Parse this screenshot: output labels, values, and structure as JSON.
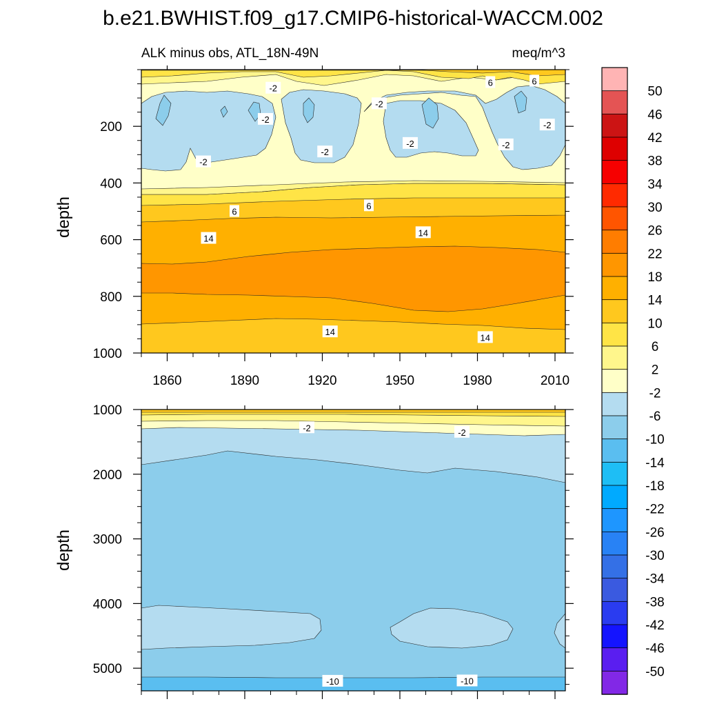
{
  "title": "b.e21.BWHIST.f09_g17.CMIP6-historical-WACCM.002",
  "chart_data": {
    "type": "heatmap",
    "subtitle_left": "ALK minus obs, ATL_18N-49N",
    "subtitle_right": "meq/m^3",
    "x_range": [
      1850,
      2014
    ],
    "x_ticks": [
      1860,
      1890,
      1920,
      1950,
      1980,
      2010
    ],
    "x_tick_labels": [
      "1860",
      "1890",
      "1920",
      "1950",
      "1980",
      "2010"
    ],
    "colorbar": {
      "levels": [
        50,
        46,
        42,
        38,
        34,
        30,
        26,
        22,
        18,
        14,
        10,
        6,
        2,
        -2,
        -6,
        -10,
        -14,
        -18,
        -22,
        -26,
        -30,
        -34,
        -38,
        -42,
        -46,
        -50
      ],
      "labels": [
        "50",
        "46",
        "42",
        "38",
        "34",
        "30",
        "26",
        "22",
        "18",
        "14",
        "10",
        "6",
        "2",
        "-2",
        "-6",
        "-10",
        "-14",
        "-18",
        "-22",
        "-26",
        "-30",
        "-34",
        "-38",
        "-42",
        "-46",
        "-50"
      ],
      "colors": [
        "#ffb4b4",
        "#e45454",
        "#cc1414",
        "#de0000",
        "#f60000",
        "#ff2a00",
        "#ff5500",
        "#ff7d00",
        "#ff9600",
        "#ffb000",
        "#ffc81e",
        "#ffe446",
        "#fff68c",
        "#ffffc8",
        "#b4dcf0",
        "#8ccdeb",
        "#5abef0",
        "#1ebef5",
        "#00aaff",
        "#1e96ff",
        "#2882f5",
        "#3470e6",
        "#3a5ae0",
        "#2a3cf0",
        "#1414ff",
        "#5a1ef0",
        "#8228e6"
      ]
    },
    "panels": [
      {
        "id": "upper",
        "ylabel": "depth",
        "y_range": [
          0,
          1000
        ],
        "y_ticks": [
          200,
          400,
          600,
          800,
          1000
        ],
        "y_tick_labels": [
          "200",
          "400",
          "600",
          "800",
          "1000"
        ],
        "contour_labels": [
          {
            "text": "-2",
            "x": 1901,
            "y": 65
          },
          {
            "text": "-2",
            "x": 1898,
            "y": 175
          },
          {
            "text": "-2",
            "x": 1874,
            "y": 325
          },
          {
            "text": "-2",
            "x": 1921,
            "y": 290
          },
          {
            "text": "-2",
            "x": 1942,
            "y": 120
          },
          {
            "text": "-2",
            "x": 1954,
            "y": 260
          },
          {
            "text": "-2",
            "x": 1991,
            "y": 265
          },
          {
            "text": "-2",
            "x": 2007,
            "y": 195
          },
          {
            "text": "6",
            "x": 1985,
            "y": 45
          },
          {
            "text": "6",
            "x": 2002,
            "y": 40
          },
          {
            "text": "6",
            "x": 1886,
            "y": 500
          },
          {
            "text": "6",
            "x": 1938,
            "y": 480
          },
          {
            "text": "14",
            "x": 1876,
            "y": 595
          },
          {
            "text": "14",
            "x": 1959,
            "y": 575
          },
          {
            "text": "14",
            "x": 1923,
            "y": 925
          },
          {
            "text": "14",
            "x": 1983,
            "y": 945
          }
        ]
      },
      {
        "id": "lower",
        "ylabel": "depth",
        "y_range": [
          1000,
          5350
        ],
        "y_ticks": [
          1000,
          2000,
          3000,
          4000,
          5000
        ],
        "y_tick_labels": [
          "1000",
          "2000",
          "3000",
          "4000",
          "5000"
        ],
        "contour_labels": [
          {
            "text": "-2",
            "x": 1914,
            "y": 1280
          },
          {
            "text": "-2",
            "x": 1974,
            "y": 1350
          },
          {
            "text": "-10",
            "x": 1924,
            "y": 5200
          },
          {
            "text": "-10",
            "x": 1976,
            "y": 5195
          }
        ]
      }
    ]
  }
}
